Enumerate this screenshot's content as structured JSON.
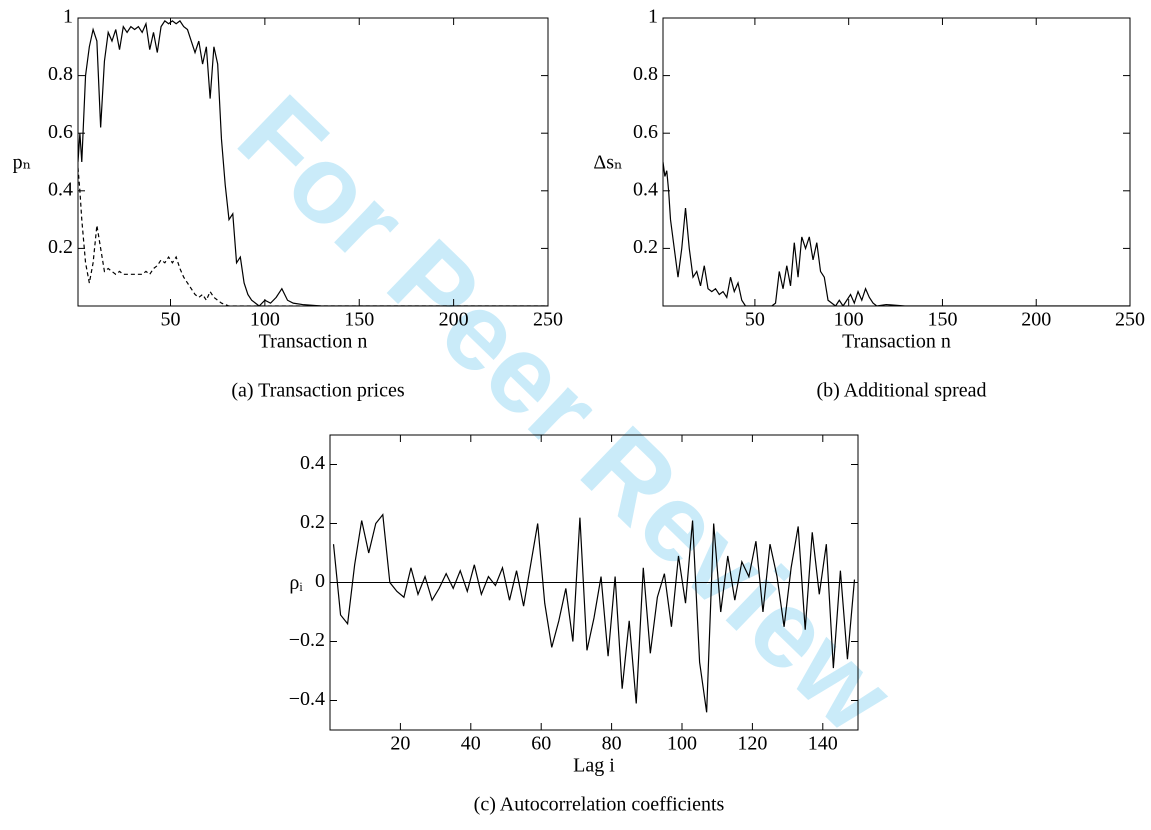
{
  "watermark": "For Peer Review",
  "chart_data": [
    {
      "type": "line",
      "caption": "(a) Transaction prices",
      "x_label": "Transaction n",
      "y_label": "pₙ",
      "x": [
        1,
        2,
        3,
        5,
        7,
        9,
        11,
        13,
        15,
        17,
        19,
        21,
        23,
        25,
        27,
        29,
        31,
        33,
        35,
        37,
        39,
        41,
        43,
        45,
        47,
        49,
        51,
        53,
        55,
        57,
        59,
        61,
        63,
        65,
        67,
        69,
        71,
        73,
        75,
        77,
        79,
        81,
        83,
        85,
        87,
        89,
        91,
        93,
        95,
        97,
        100,
        103,
        106,
        109,
        112,
        115,
        120,
        130,
        140,
        150,
        175,
        200,
        250
      ],
      "series": [
        {
          "color": "#000000",
          "line_style": "solid",
          "values": [
            0.5,
            0.6,
            0.5,
            0.8,
            0.9,
            0.96,
            0.92,
            0.62,
            0.85,
            0.95,
            0.92,
            0.96,
            0.89,
            0.97,
            0.95,
            0.97,
            0.96,
            0.97,
            0.95,
            0.98,
            0.89,
            0.95,
            0.88,
            0.97,
            0.99,
            0.98,
            0.99,
            0.98,
            0.99,
            0.97,
            0.96,
            0.92,
            0.88,
            0.92,
            0.84,
            0.9,
            0.72,
            0.9,
            0.84,
            0.58,
            0.42,
            0.3,
            0.32,
            0.15,
            0.17,
            0.08,
            0.04,
            0.02,
            0.01,
            0,
            0.02,
            0.01,
            0.03,
            0.06,
            0.02,
            0.01,
            0.005,
            0,
            0,
            0,
            0,
            0,
            0
          ]
        },
        {
          "color": "#000000",
          "line_style": "dashed",
          "values": [
            0.48,
            0.4,
            0.3,
            0.15,
            0.08,
            0.15,
            0.28,
            0.2,
            0.12,
            0.13,
            0.12,
            0.11,
            0.12,
            0.11,
            0.11,
            0.11,
            0.11,
            0.11,
            0.11,
            0.12,
            0.11,
            0.13,
            0.14,
            0.16,
            0.15,
            0.17,
            0.15,
            0.17,
            0.13,
            0.1,
            0.08,
            0.06,
            0.04,
            0.03,
            0.04,
            0.02,
            0.05,
            0.03,
            0.02,
            0.01,
            0.005,
            0,
            0,
            0,
            0,
            0,
            0,
            0,
            0,
            0,
            0,
            0,
            0,
            0,
            0,
            0,
            0,
            0,
            0,
            0,
            0,
            0,
            0
          ]
        }
      ],
      "xlim": [
        1,
        250
      ],
      "ylim": [
        0,
        1
      ],
      "xticks": [
        50,
        100,
        150,
        200,
        250
      ],
      "yticks": [
        0.2,
        0.4,
        0.6,
        0.8,
        1
      ]
    },
    {
      "type": "line",
      "caption": "(b) Additional spread",
      "x_label": "Transaction n",
      "y_label": "Δsₙ",
      "x": [
        1,
        2,
        3,
        4,
        5,
        7,
        9,
        11,
        13,
        15,
        17,
        19,
        21,
        23,
        25,
        27,
        29,
        31,
        33,
        35,
        37,
        39,
        41,
        43,
        45,
        47,
        49,
        51,
        53,
        55,
        57,
        59,
        61,
        63,
        65,
        67,
        69,
        71,
        73,
        75,
        77,
        79,
        81,
        83,
        85,
        87,
        89,
        91,
        93,
        95,
        97,
        99,
        101,
        103,
        105,
        107,
        109,
        111,
        113,
        115,
        120,
        130,
        140,
        150,
        200,
        250
      ],
      "series": [
        {
          "color": "#000000",
          "line_style": "solid",
          "values": [
            0.5,
            0.45,
            0.47,
            0.4,
            0.3,
            0.2,
            0.1,
            0.2,
            0.34,
            0.2,
            0.1,
            0.12,
            0.07,
            0.14,
            0.06,
            0.05,
            0.06,
            0.04,
            0.05,
            0.03,
            0.1,
            0.05,
            0.08,
            0.02,
            0,
            0,
            0,
            0,
            0,
            0,
            0,
            0,
            0.01,
            0.12,
            0.06,
            0.14,
            0.07,
            0.22,
            0.1,
            0.24,
            0.2,
            0.24,
            0.16,
            0.22,
            0.12,
            0.1,
            0.02,
            0.01,
            0,
            0.02,
            0,
            0.02,
            0.04,
            0.01,
            0.05,
            0.02,
            0.06,
            0.03,
            0.01,
            0,
            0.005,
            0,
            0,
            0,
            0,
            0
          ]
        }
      ],
      "xlim": [
        1,
        250
      ],
      "ylim": [
        0,
        1
      ],
      "xticks": [
        50,
        100,
        150,
        200,
        250
      ],
      "yticks": [
        0.2,
        0.4,
        0.6,
        0.8,
        1
      ]
    },
    {
      "type": "line",
      "caption": "(c) Autocorrelation coefficients",
      "x_label": "Lag i",
      "y_label": "ρᵢ",
      "x": [
        1,
        3,
        5,
        7,
        9,
        11,
        13,
        15,
        17,
        19,
        21,
        23,
        25,
        27,
        29,
        31,
        33,
        35,
        37,
        39,
        41,
        43,
        45,
        47,
        49,
        51,
        53,
        55,
        57,
        59,
        61,
        63,
        65,
        67,
        69,
        71,
        73,
        75,
        77,
        79,
        81,
        83,
        85,
        87,
        89,
        91,
        93,
        95,
        97,
        99,
        101,
        103,
        105,
        107,
        109,
        111,
        113,
        115,
        117,
        119,
        121,
        123,
        125,
        127,
        129,
        131,
        133,
        135,
        137,
        139,
        141,
        143,
        145,
        147,
        149
      ],
      "series": [
        {
          "color": "#000000",
          "line_style": "solid",
          "values": [
            0.13,
            -0.11,
            -0.14,
            0.06,
            0.21,
            0.1,
            0.2,
            0.23,
            0,
            -0.03,
            -0.05,
            0.05,
            -0.04,
            0.02,
            -0.06,
            -0.02,
            0.03,
            -0.02,
            0.04,
            -0.03,
            0.06,
            -0.04,
            0.02,
            -0.01,
            0.05,
            -0.06,
            0.04,
            -0.08,
            0.06,
            0.2,
            -0.07,
            -0.22,
            -0.13,
            -0.02,
            -0.2,
            0.22,
            -0.23,
            -0.12,
            0.02,
            -0.25,
            0.02,
            -0.36,
            -0.13,
            -0.41,
            0.05,
            -0.24,
            -0.05,
            0.03,
            -0.15,
            0.09,
            -0.07,
            0.21,
            -0.27,
            -0.44,
            0.2,
            -0.1,
            0.09,
            -0.06,
            0.07,
            0.02,
            0.14,
            -0.1,
            0.13,
            0.02,
            -0.15,
            0.05,
            0.19,
            -0.16,
            0.17,
            -0.04,
            0.13,
            -0.29,
            0.04,
            -0.26,
            0.01
          ]
        }
      ],
      "reference_line": 0,
      "xlim": [
        0,
        150
      ],
      "ylim": [
        -0.5,
        0.5
      ],
      "xticks": [
        20,
        40,
        60,
        80,
        100,
        120,
        140
      ],
      "yticks": [
        {
          "value": -0.4,
          "label": "−0.4"
        },
        {
          "value": -0.2,
          "label": "−0.2"
        },
        0,
        0.2,
        0.4
      ]
    }
  ]
}
